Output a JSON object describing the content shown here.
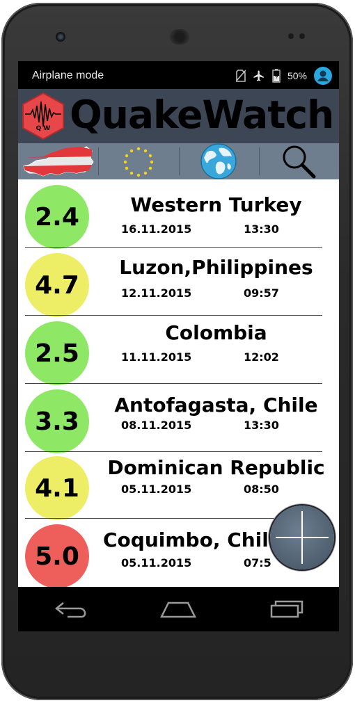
{
  "status_bar": {
    "text": "Airplane mode",
    "battery": "50%",
    "icons": [
      "no-sim-icon",
      "airplane-icon",
      "battery-icon",
      "account-icon"
    ]
  },
  "header": {
    "title": "QuakeWatch",
    "logo_text": "Q W",
    "logo_color": "#e8474a"
  },
  "toolbar": {
    "items": [
      "austria-map-icon",
      "eu-flag-icon",
      "globe-icon",
      "search-icon"
    ]
  },
  "quakes": [
    {
      "magnitude": "2.4",
      "place": "Western Turkey",
      "date": "16.11.2015",
      "time": "13:30",
      "color": "#8ee866"
    },
    {
      "magnitude": "4.7",
      "place": "Luzon,Philippines",
      "date": "12.11.2015",
      "time": "09:57",
      "color": "#eeee66"
    },
    {
      "magnitude": "2.5",
      "place": "Colombia",
      "date": "11.11.2015",
      "time": "12:02",
      "color": "#8ee866"
    },
    {
      "magnitude": "3.3",
      "place": "Antofagasta, Chile",
      "date": "08.11.2015",
      "time": "13:30",
      "color": "#8ee866"
    },
    {
      "magnitude": "4.1",
      "place": "Dominican Republic",
      "date": "05.11.2015",
      "time": "08:50",
      "color": "#eeee66"
    },
    {
      "magnitude": "5.0",
      "place": "Coquimbo, Chile",
      "date": "05.11.2015",
      "time": "07:5",
      "color": "#ee5e5a"
    }
  ],
  "fab": {
    "icon": "plus-icon"
  },
  "navbar": {
    "items": [
      "back-icon",
      "home-icon",
      "recents-icon"
    ]
  }
}
